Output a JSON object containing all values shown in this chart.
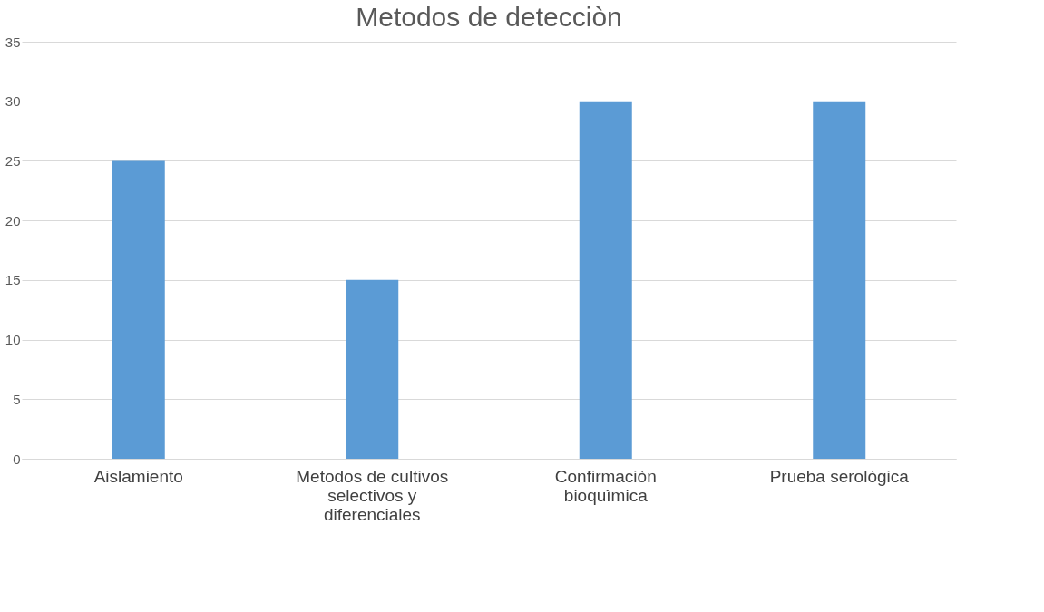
{
  "chart_data": {
    "type": "bar",
    "title": "Metodos de detecciòn",
    "categories": [
      "Aislamiento",
      "Metodos de cultivos selectivos y diferenciales",
      "Confirmaciòn bioquìmica",
      "Prueba serològica"
    ],
    "values": [
      25,
      15,
      30,
      30
    ],
    "color": "#5b9bd5",
    "ylim": [
      0,
      35
    ],
    "yticks": [
      0,
      5,
      10,
      15,
      20,
      25,
      30,
      35
    ],
    "grid": "y"
  }
}
